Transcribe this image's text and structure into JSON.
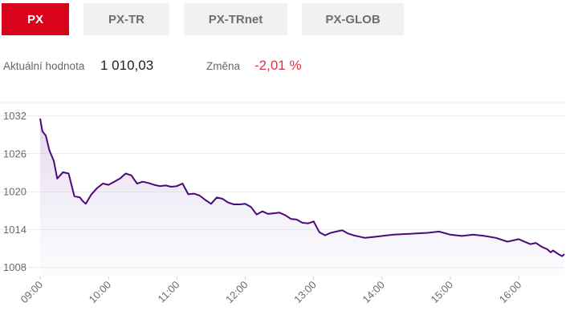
{
  "tabs": [
    {
      "label": "PX",
      "active": true
    },
    {
      "label": "PX-TR",
      "active": false
    },
    {
      "label": "PX-TRnet",
      "active": false
    },
    {
      "label": "PX-GLOB",
      "active": false
    }
  ],
  "stats": {
    "current_label": "Aktuální hodnota",
    "current_value": "1 010,03",
    "change_label": "Změna",
    "change_value": "-2,01 %"
  },
  "colors": {
    "accent": "#d7041b",
    "line": "#4b0a78",
    "negative": "#d9344a"
  },
  "chart_data": {
    "type": "line",
    "title": "",
    "xlabel": "",
    "ylabel": "",
    "x_ticks": [
      "09:00",
      "10:00",
      "11:00",
      "12:00",
      "13:00",
      "14:00",
      "15:00",
      "16:00"
    ],
    "y_ticks": [
      1008,
      1014,
      1020,
      1026,
      1032
    ],
    "xlim": [
      "09:00",
      "16:40"
    ],
    "ylim": [
      1006,
      1034
    ],
    "grid": true,
    "series": [
      {
        "x": [
          "09:00",
          "09:02",
          "09:05",
          "09:08",
          "09:12",
          "09:15",
          "09:20",
          "09:25",
          "09:30",
          "09:35",
          "09:37",
          "09:40",
          "09:45",
          "09:50",
          "09:55",
          "10:00",
          "10:05",
          "10:10",
          "10:15",
          "10:20",
          "10:25",
          "10:30",
          "10:35",
          "10:40",
          "10:45",
          "10:50",
          "10:55",
          "11:00",
          "11:05",
          "11:10",
          "11:15",
          "11:20",
          "11:25",
          "11:30",
          "11:35",
          "11:40",
          "11:45",
          "11:50",
          "11:55",
          "12:00",
          "12:05",
          "12:10",
          "12:15",
          "12:20",
          "12:25",
          "12:30",
          "12:35",
          "12:40",
          "12:45",
          "12:50",
          "12:55",
          "13:00",
          "13:05",
          "13:10",
          "13:15",
          "13:20",
          "13:25",
          "13:30",
          "13:35",
          "13:40",
          "13:45",
          "13:50",
          "13:55",
          "14:00",
          "14:10",
          "14:20",
          "14:30",
          "14:40",
          "14:50",
          "15:00",
          "15:10",
          "15:20",
          "15:30",
          "15:40",
          "15:50",
          "16:00",
          "16:10",
          "16:15",
          "16:20",
          "16:25",
          "16:28",
          "16:30",
          "16:35",
          "16:38",
          "16:40"
        ],
        "y": [
          1031.5,
          1029.5,
          1028.8,
          1026.5,
          1024.8,
          1022.0,
          1023.0,
          1022.8,
          1019.2,
          1019.0,
          1018.5,
          1018.0,
          1019.5,
          1020.5,
          1021.2,
          1021.0,
          1021.5,
          1022.0,
          1022.8,
          1022.5,
          1021.2,
          1021.5,
          1021.3,
          1021.0,
          1020.8,
          1020.9,
          1020.7,
          1020.8,
          1021.2,
          1019.5,
          1019.6,
          1019.3,
          1018.6,
          1018.0,
          1019.0,
          1018.8,
          1018.2,
          1017.9,
          1017.9,
          1018.0,
          1017.5,
          1016.3,
          1016.8,
          1016.4,
          1016.5,
          1016.6,
          1016.2,
          1015.6,
          1015.5,
          1015.0,
          1014.9,
          1015.2,
          1013.5,
          1013.0,
          1013.4,
          1013.6,
          1013.8,
          1013.3,
          1013.0,
          1012.8,
          1012.6,
          1012.7,
          1012.8,
          1012.9,
          1013.1,
          1013.2,
          1013.3,
          1013.4,
          1013.6,
          1013.1,
          1012.9,
          1013.1,
          1012.9,
          1012.6,
          1012.0,
          1012.4,
          1011.6,
          1011.8,
          1011.2,
          1010.8,
          1010.3,
          1010.6,
          1010.0,
          1009.7,
          1010.03
        ]
      }
    ]
  }
}
